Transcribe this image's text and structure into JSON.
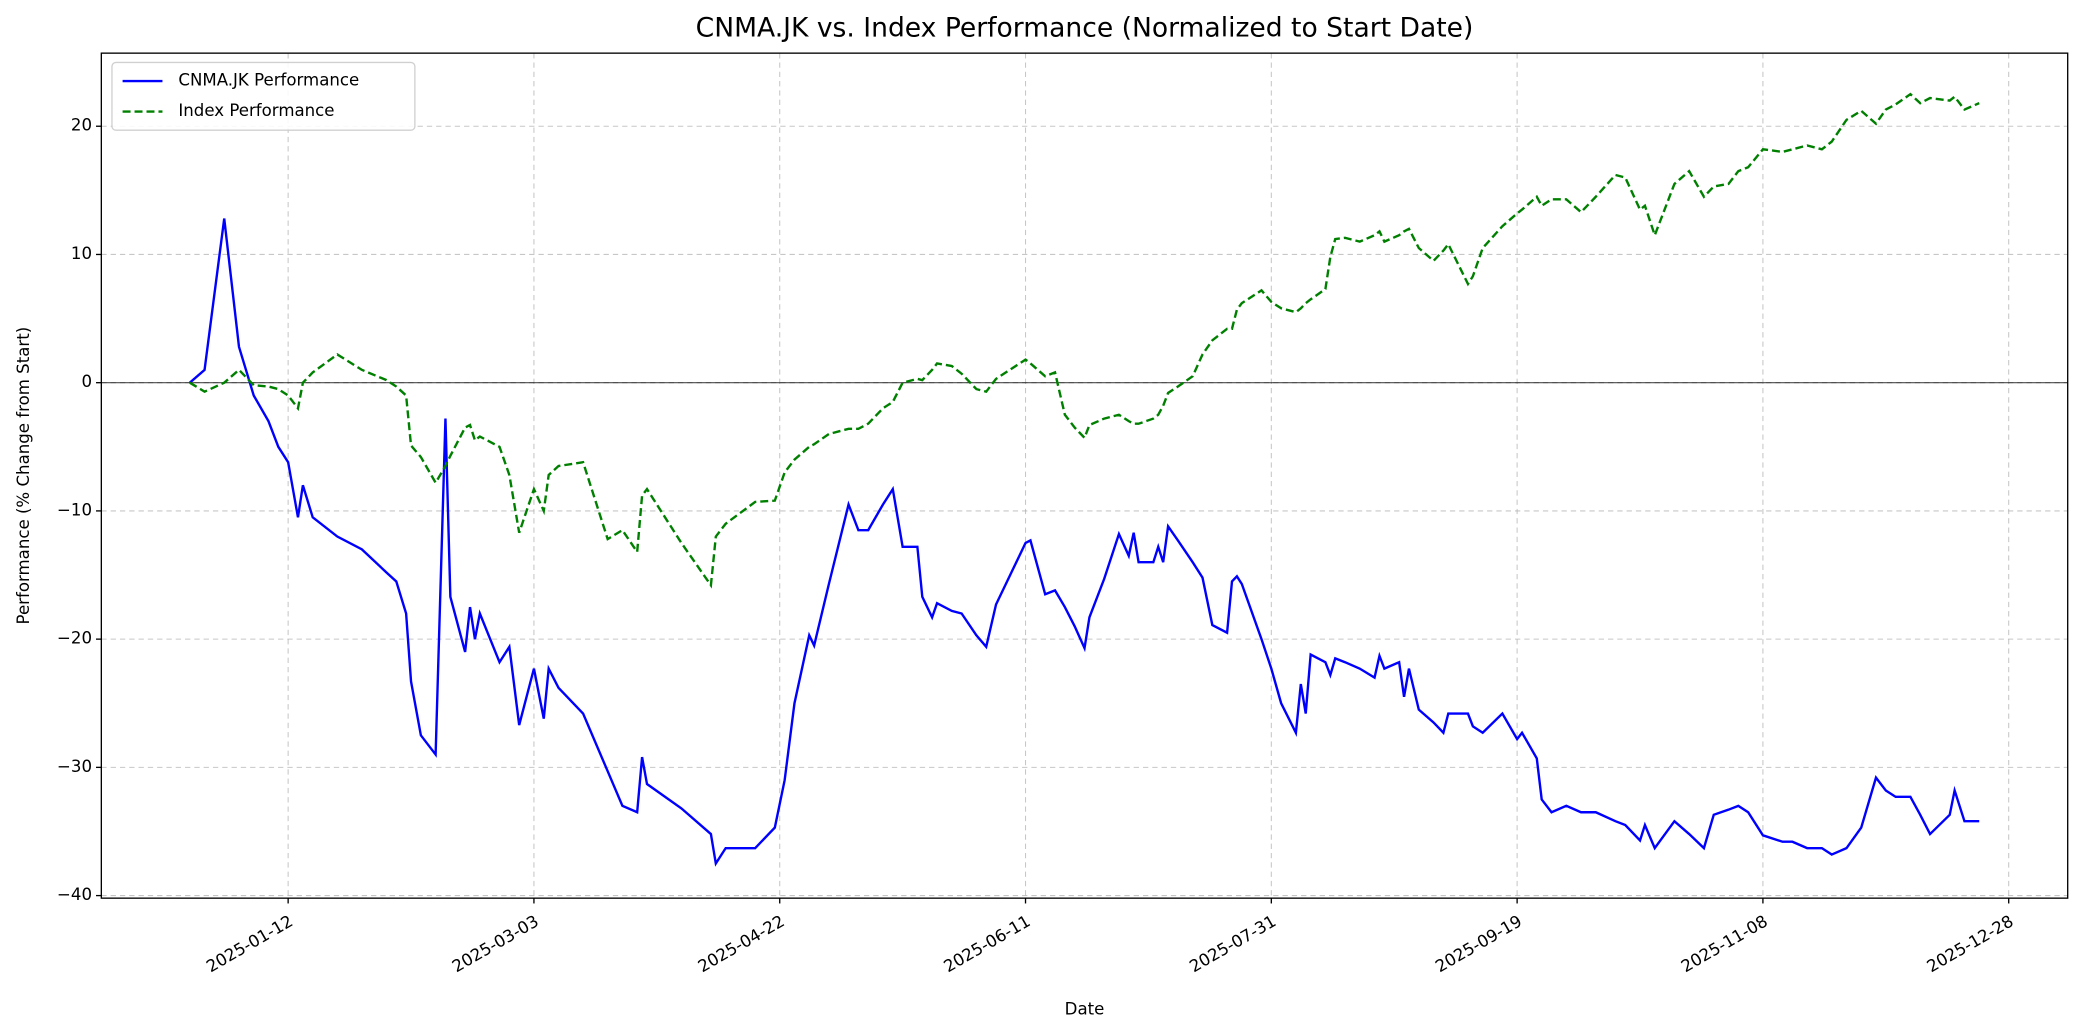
{
  "chart_data": {
    "type": "line",
    "title": "CNMA.JK vs. Index Performance (Normalized to Start Date)",
    "x_label": "Date",
    "y_label": "Performance (% Change from Start)",
    "grid": true,
    "legend": "upper left",
    "hline": 0,
    "xlim": [
      "2024-12-05",
      "2026-01-09"
    ],
    "xticks": [
      "2025-01-12",
      "2025-03-03",
      "2025-04-22",
      "2025-06-11",
      "2025-07-31",
      "2025-09-19",
      "2025-11-08",
      "2025-12-28"
    ],
    "ylim": [
      -40.2,
      25.7
    ],
    "yticks": [
      {
        "value": -40,
        "label": "−40"
      },
      {
        "value": -30,
        "label": "−30"
      },
      {
        "value": -20,
        "label": "−20"
      },
      {
        "value": -10,
        "label": "−10"
      },
      0,
      10,
      20
    ],
    "x": [
      "2024-12-23",
      "2024-12-26",
      "2024-12-30",
      "2025-01-02",
      "2025-01-05",
      "2025-01-08",
      "2025-01-10",
      "2025-01-12",
      "2025-01-14",
      "2025-01-15",
      "2025-01-17",
      "2025-01-22",
      "2025-01-27",
      "2025-02-01",
      "2025-02-03",
      "2025-02-05",
      "2025-02-06",
      "2025-02-08",
      "2025-02-11",
      "2025-02-13",
      "2025-02-14",
      "2025-02-17",
      "2025-02-18",
      "2025-02-19",
      "2025-02-20",
      "2025-02-24",
      "2025-02-26",
      "2025-02-28",
      "2025-03-03",
      "2025-03-05",
      "2025-03-06",
      "2025-03-08",
      "2025-03-13",
      "2025-03-18",
      "2025-03-21",
      "2025-03-24",
      "2025-03-25",
      "2025-03-26",
      "2025-04-02",
      "2025-04-08",
      "2025-04-09",
      "2025-04-11",
      "2025-04-17",
      "2025-04-21",
      "2025-04-23",
      "2025-04-25",
      "2025-04-28",
      "2025-04-29",
      "2025-05-02",
      "2025-05-06",
      "2025-05-08",
      "2025-05-10",
      "2025-05-13",
      "2025-05-15",
      "2025-05-17",
      "2025-05-20",
      "2025-05-21",
      "2025-05-23",
      "2025-05-24",
      "2025-05-27",
      "2025-05-29",
      "2025-06-01",
      "2025-06-03",
      "2025-06-05",
      "2025-06-11",
      "2025-06-12",
      "2025-06-15",
      "2025-06-17",
      "2025-06-19",
      "2025-06-21",
      "2025-06-23",
      "2025-06-24",
      "2025-06-27",
      "2025-06-30",
      "2025-07-02",
      "2025-07-03",
      "2025-07-04",
      "2025-07-07",
      "2025-07-08",
      "2025-07-09",
      "2025-07-10",
      "2025-07-12",
      "2025-07-15",
      "2025-07-17",
      "2025-07-19",
      "2025-07-22",
      "2025-07-23",
      "2025-07-24",
      "2025-07-25",
      "2025-07-29",
      "2025-07-31",
      "2025-08-02",
      "2025-08-05",
      "2025-08-06",
      "2025-08-07",
      "2025-08-08",
      "2025-08-11",
      "2025-08-12",
      "2025-08-13",
      "2025-08-15",
      "2025-08-18",
      "2025-08-21",
      "2025-08-22",
      "2025-08-23",
      "2025-08-26",
      "2025-08-27",
      "2025-08-28",
      "2025-08-30",
      "2025-09-02",
      "2025-09-04",
      "2025-09-05",
      "2025-09-09",
      "2025-09-10",
      "2025-09-12",
      "2025-09-16",
      "2025-09-19",
      "2025-09-20",
      "2025-09-23",
      "2025-09-24",
      "2025-09-26",
      "2025-09-29",
      "2025-10-02",
      "2025-10-05",
      "2025-10-09",
      "2025-10-11",
      "2025-10-14",
      "2025-10-15",
      "2025-10-17",
      "2025-10-21",
      "2025-10-24",
      "2025-10-27",
      "2025-10-29",
      "2025-11-01",
      "2025-11-03",
      "2025-11-05",
      "2025-11-08",
      "2025-11-12",
      "2025-11-14",
      "2025-11-17",
      "2025-11-20",
      "2025-11-22",
      "2025-11-25",
      "2025-11-28",
      "2025-12-01",
      "2025-12-03",
      "2025-12-05",
      "2025-12-08",
      "2025-12-10",
      "2025-12-12",
      "2025-12-16",
      "2025-12-17",
      "2025-12-19",
      "2025-12-22"
    ],
    "series": [
      {
        "name": "CNMA.JK Performance",
        "color": "#0000ff",
        "dash": "solid",
        "values": [
          0,
          1,
          12.8,
          2.8,
          -1,
          -3,
          -5,
          -6.2,
          -10.5,
          -8,
          -10.5,
          -12,
          -13,
          -14.8,
          -15.5,
          -18,
          -23.3,
          -27.5,
          -29,
          -2.8,
          -16.7,
          -21,
          -17.5,
          -20,
          -18,
          -21.8,
          -20.6,
          -26.7,
          -22.3,
          -26.2,
          -22.3,
          -23.8,
          -25.8,
          -30.3,
          -33,
          -33.5,
          -29.2,
          -31.3,
          -33.2,
          -35.2,
          -37.5,
          -36.3,
          -36.3,
          -34.7,
          -31,
          -25,
          -19.7,
          -20.5,
          -15.7,
          -9.5,
          -11.5,
          -11.5,
          -9.5,
          -8.3,
          -12.8,
          -12.8,
          -16.7,
          -18.3,
          -17.2,
          -17.8,
          -18,
          -19.7,
          -20.6,
          -17.3,
          -12.5,
          -12.3,
          -16.5,
          -16.2,
          -17.5,
          -19,
          -20.7,
          -18.3,
          -15.3,
          -11.8,
          -13.5,
          -11.7,
          -14,
          -14,
          -12.8,
          -14,
          -11.2,
          -12.3,
          -14,
          -15.2,
          -18.9,
          -19.5,
          -15.5,
          -15.1,
          -15.7,
          -20,
          -22.3,
          -25,
          -27.3,
          -23.5,
          -25.8,
          -21.2,
          -21.8,
          -22.8,
          -21.5,
          -21.8,
          -22.3,
          -23,
          -21.3,
          -22.3,
          -21.8,
          -24.5,
          -22.3,
          -25.5,
          -26.5,
          -27.3,
          -25.8,
          -25.8,
          -26.8,
          -27.3,
          -25.8,
          -27.8,
          -27.3,
          -29.3,
          -32.5,
          -33.5,
          -33,
          -33.5,
          -33.5,
          -34.2,
          -34.5,
          -35.7,
          -34.5,
          -36.3,
          -34.2,
          -35.2,
          -36.3,
          -33.7,
          -33.3,
          -33,
          -33.5,
          -35.3,
          -35.8,
          -35.8,
          -36.3,
          -36.3,
          -36.8,
          -36.3,
          -34.7,
          -30.8,
          -31.8,
          -32.3,
          -32.3,
          -33.7,
          -35.2,
          -33.7,
          -31.8,
          -34.2,
          -34.2
        ]
      },
      {
        "name": "Index Performance",
        "color": "#008000",
        "dash": "dashed",
        "values": [
          0,
          -0.7,
          0,
          1,
          -0.2,
          -0.3,
          -0.5,
          -1,
          -2,
          0,
          0.8,
          2.2,
          1,
          0.2,
          -0.3,
          -1,
          -4.9,
          -5.8,
          -7.8,
          -6.5,
          -5.7,
          -3.5,
          -3.3,
          -4.5,
          -4.2,
          -5,
          -7.2,
          -11.7,
          -8.3,
          -10,
          -7.2,
          -6.5,
          -6.2,
          -12.2,
          -11.5,
          -13.2,
          -8.8,
          -8.3,
          -12.5,
          -15.8,
          -12,
          -11,
          -9.3,
          -9.2,
          -7,
          -6,
          -5,
          -4.8,
          -4,
          -3.6,
          -3.6,
          -3.2,
          -2,
          -1.5,
          0,
          0.3,
          0.2,
          1,
          1.5,
          1.3,
          0.7,
          -0.5,
          -0.7,
          0.3,
          1.8,
          1.5,
          0.5,
          0.8,
          -2.5,
          -3.5,
          -4.3,
          -3.3,
          -2.8,
          -2.5,
          -3,
          -3.2,
          -3.2,
          -2.8,
          -2.5,
          -1.8,
          -0.8,
          -0.3,
          0.5,
          2.2,
          3.3,
          4.2,
          4.2,
          5.7,
          6.2,
          7.2,
          6.3,
          5.8,
          5.5,
          5.8,
          6.2,
          6.5,
          7.3,
          9.8,
          11.2,
          11.3,
          11,
          11.5,
          11.8,
          11,
          11.5,
          11.8,
          12,
          10.5,
          9.5,
          10.3,
          10.8,
          7.7,
          8.3,
          10.5,
          12.2,
          13.2,
          13.5,
          14.5,
          13.8,
          14.3,
          14.3,
          13.3,
          14.5,
          16.2,
          16,
          13.5,
          13.8,
          11.5,
          15.5,
          16.5,
          14.5,
          15.3,
          15.5,
          16.5,
          16.8,
          18.2,
          18,
          18.2,
          18.5,
          18.2,
          18.8,
          20.5,
          21.2,
          20.2,
          21.3,
          21.7,
          22.5,
          21.8,
          22.2,
          22,
          22.3,
          21.3,
          21.8
        ]
      }
    ]
  }
}
